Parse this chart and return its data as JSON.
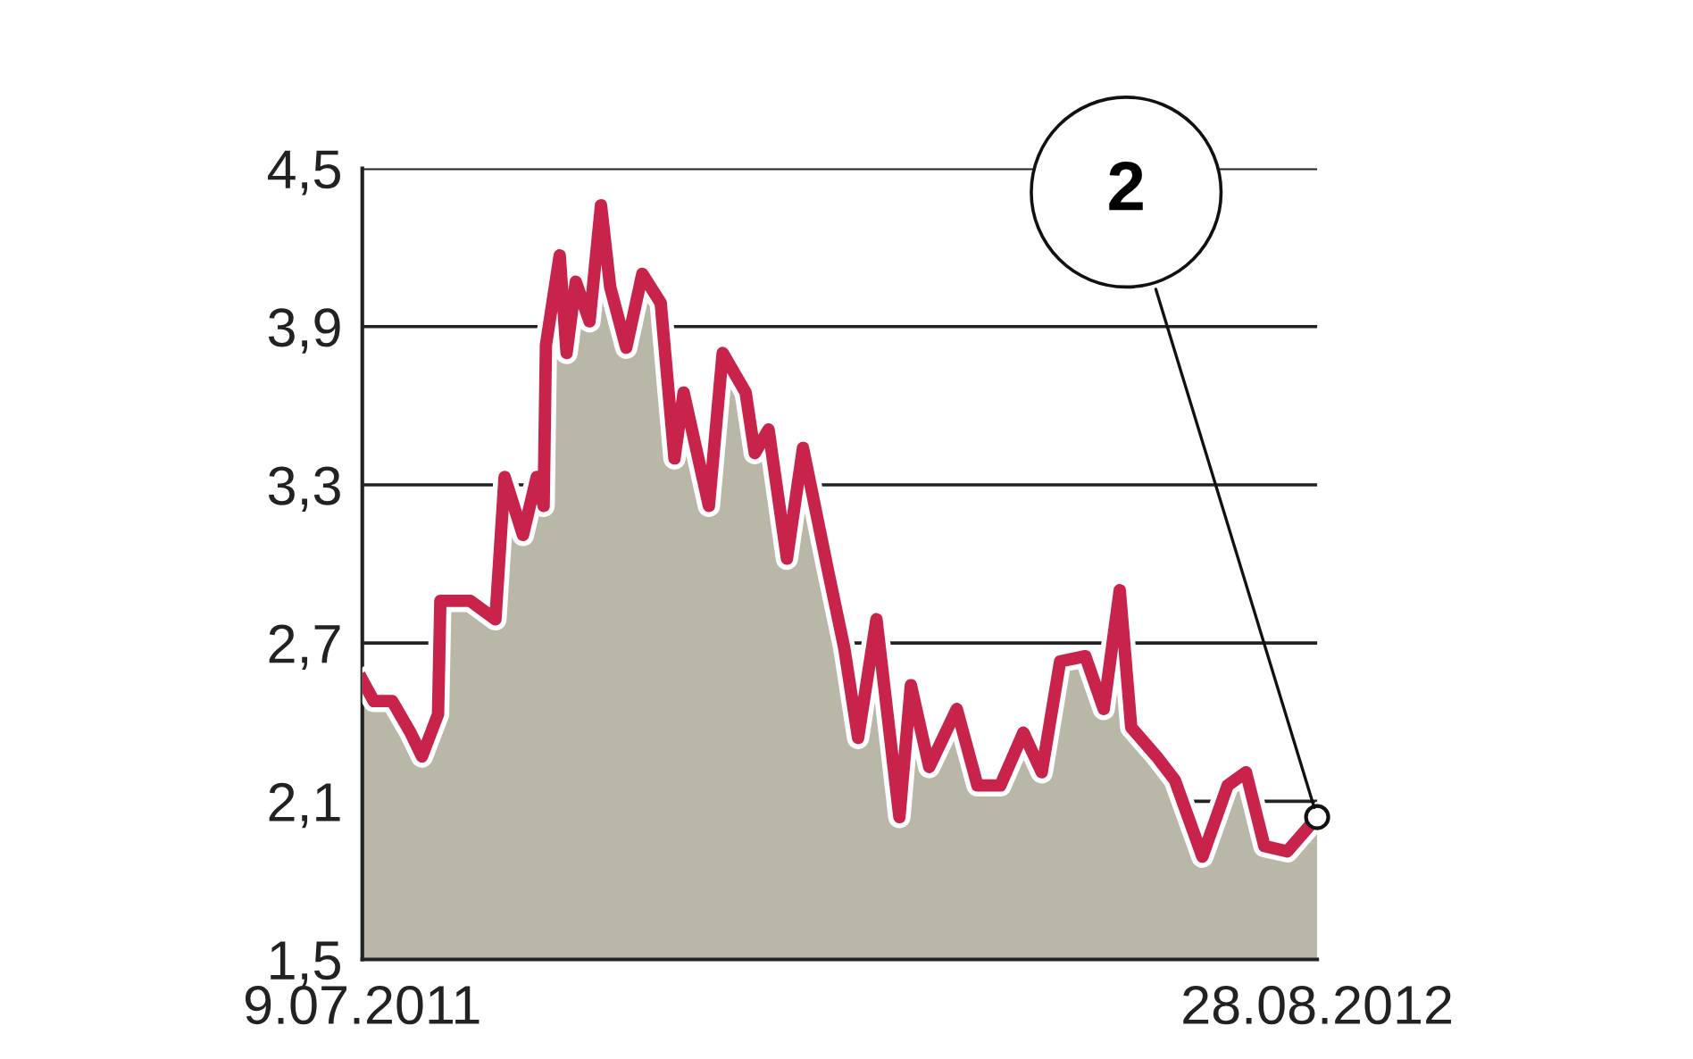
{
  "chart_data": {
    "type": "area",
    "x": [
      "2011-07-09",
      "2011-07-14",
      "2011-07-22",
      "2011-07-30",
      "2011-08-04",
      "2011-08-11",
      "2011-08-12",
      "2011-08-25",
      "2011-09-05",
      "2011-09-09",
      "2011-09-17",
      "2011-09-23",
      "2011-09-26",
      "2011-09-27",
      "2011-10-03",
      "2011-10-06",
      "2011-10-10",
      "2011-10-16",
      "2011-10-21",
      "2011-10-25",
      "2011-11-01",
      "2011-11-08",
      "2011-11-16",
      "2011-11-22",
      "2011-11-26",
      "2011-12-07",
      "2011-12-13",
      "2011-12-23",
      "2011-12-27",
      "2012-01-02",
      "2012-01-10",
      "2012-01-17",
      "2012-01-28",
      "2012-02-04",
      "2012-02-10",
      "2012-02-18",
      "2012-02-28",
      "2012-03-04",
      "2012-03-12",
      "2012-03-24",
      "2012-04-02",
      "2012-04-12",
      "2012-04-22",
      "2012-04-30",
      "2012-05-08",
      "2012-05-19",
      "2012-05-27",
      "2012-06-03",
      "2012-06-08",
      "2012-06-19",
      "2012-06-27",
      "2012-07-09",
      "2012-07-20",
      "2012-07-28",
      "2012-08-05",
      "2012-08-15",
      "2012-08-28"
    ],
    "series": [
      {
        "color": "#c8234a",
        "values": [
          2.56,
          2.48,
          2.48,
          2.36,
          2.27,
          2.43,
          2.86,
          2.86,
          2.79,
          3.33,
          3.11,
          3.33,
          3.22,
          3.83,
          4.17,
          3.8,
          4.07,
          3.92,
          4.36,
          4.05,
          3.82,
          4.1,
          3.99,
          3.4,
          3.65,
          3.22,
          3.8,
          3.65,
          3.42,
          3.51,
          3.02,
          3.44,
          2.97,
          2.68,
          2.34,
          2.79,
          2.04,
          2.54,
          2.23,
          2.45,
          2.16,
          2.16,
          2.36,
          2.21,
          2.63,
          2.65,
          2.45,
          2.9,
          2.38,
          2.27,
          2.18,
          1.89,
          2.16,
          2.21,
          1.93,
          1.91,
          2.04
        ]
      }
    ],
    "xlim": [
      "2011-07-09",
      "2012-08-28"
    ],
    "xticks": [
      {
        "value": "2011-07-09",
        "label": "9.07.2011"
      },
      {
        "value": "2012-08-28",
        "label": "28.08.2012"
      }
    ],
    "ylim": [
      1.5,
      4.5
    ],
    "yticks": [
      {
        "value": 1.5,
        "label": "1,5"
      },
      {
        "value": 2.1,
        "label": "2,1"
      },
      {
        "value": 2.7,
        "label": "2,7"
      },
      {
        "value": 3.3,
        "label": "3,3"
      },
      {
        "value": 3.9,
        "label": "3,9"
      },
      {
        "value": 4.5,
        "label": "4,5"
      }
    ],
    "grid": "y",
    "annotations": [
      {
        "text": "2",
        "x": "2012-08-28",
        "y": 2.04
      }
    ]
  }
}
